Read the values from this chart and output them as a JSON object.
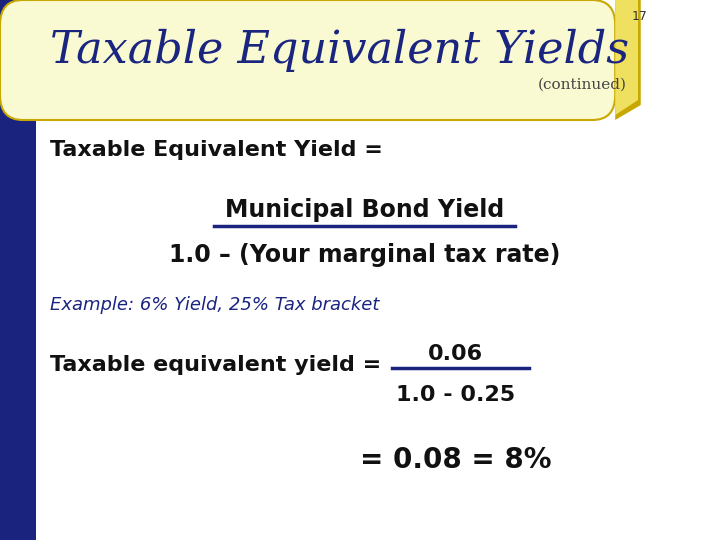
{
  "slide_num": "17",
  "title": "Taxable Equivalent Yields",
  "subtitle": "(continued)",
  "bg_color": "#FFFFFF",
  "left_bar_color": "#1a237e",
  "header_bg_color": "#FAFAD2",
  "header_border_color": "#C8A800",
  "title_color": "#1a2580",
  "subtitle_color": "#444444",
  "body_text_color": "#111111",
  "blue_text_color": "#1a2580",
  "line1": "Taxable Equivalent Yield =",
  "numerator": "Municipal Bond Yield",
  "denominator": "1.0 – (Your marginal tax rate)",
  "example_label": "Example: 6% Yield, 25% Tax bracket",
  "tey_label": "Taxable equivalent yield =",
  "tey_numerator": "0.06",
  "tey_denominator": "1.0 - 0.25",
  "result": "= 0.08 = 8%"
}
